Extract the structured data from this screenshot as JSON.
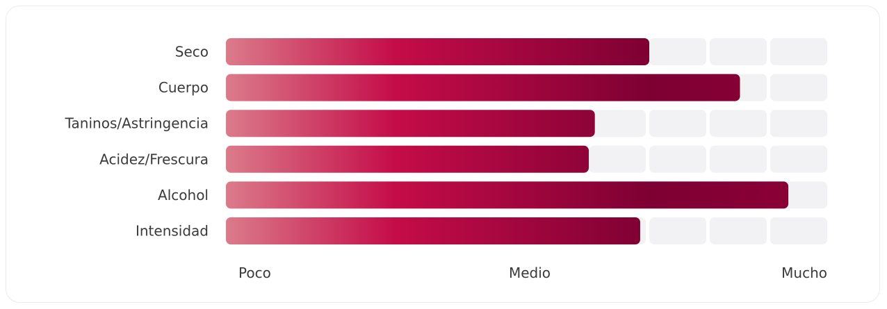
{
  "chart_data": {
    "type": "bar",
    "orientation": "horizontal",
    "categories": [
      "Seco",
      "Cuerpo",
      "Taninos/Astringencia",
      "Acidez/Frescura",
      "Alcohol",
      "Intensidad"
    ],
    "values": [
      7.0,
      8.5,
      6.1,
      6.0,
      9.3,
      6.85
    ],
    "xlim": [
      0,
      10
    ],
    "scale_labels": [
      "Poco",
      "Medio",
      "Mucho"
    ],
    "segments": 10,
    "grid": false,
    "legend": "none",
    "colors": {
      "gradient": [
        "#db7b8a",
        "#c40c48",
        "#7e0033",
        "#8d0036"
      ],
      "track": "#f2f2f4",
      "label": "#3a3a3a"
    }
  }
}
